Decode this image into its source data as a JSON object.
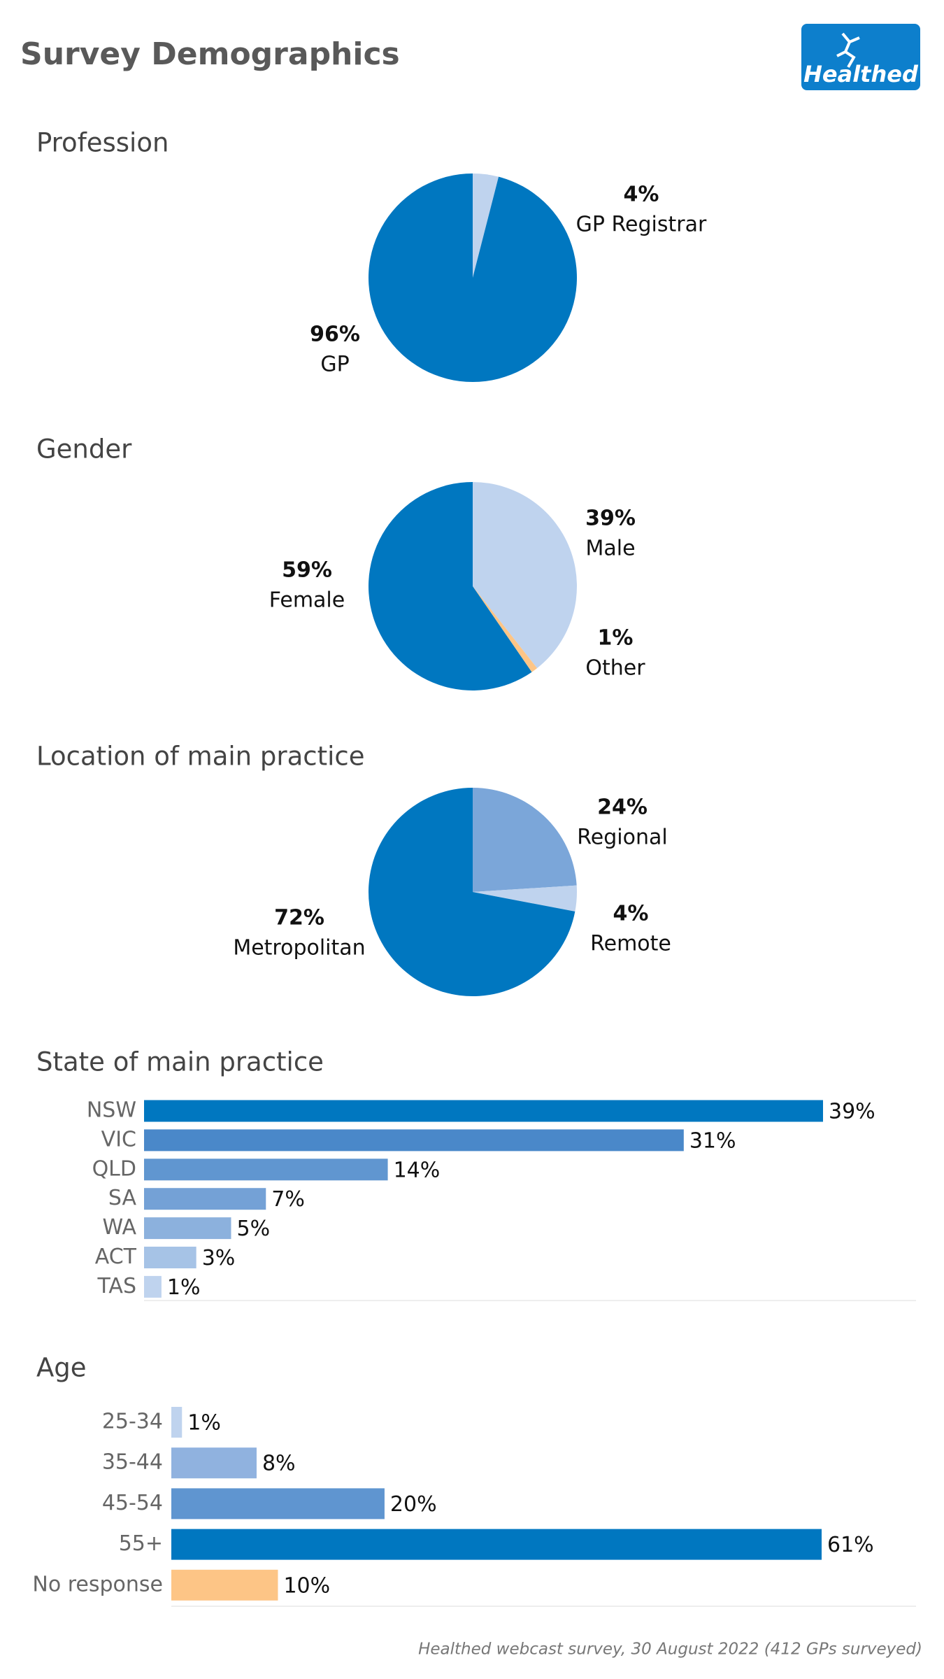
{
  "header": {
    "title": "Survey Demographics",
    "logo": "Healthed"
  },
  "chart_data": [
    {
      "type": "pie",
      "title": "Profession",
      "categories": [
        "GP Registrar",
        "GP"
      ],
      "values": [
        4,
        96
      ],
      "value_labels": [
        "4%",
        "96%"
      ],
      "colors": [
        "#bfd3ee",
        "#0077c0"
      ]
    },
    {
      "type": "pie",
      "title": "Gender",
      "categories": [
        "Male",
        "Other",
        "Female"
      ],
      "values": [
        39,
        1,
        59
      ],
      "value_labels": [
        "39%",
        "1%",
        "59%"
      ],
      "colors": [
        "#bfd3ee",
        "#fdc586",
        "#0077c0"
      ]
    },
    {
      "type": "pie",
      "title": "Location of main practice",
      "categories": [
        "Regional",
        "Remote",
        "Metropolitan"
      ],
      "values": [
        24,
        4,
        72
      ],
      "value_labels": [
        "24%",
        "4%",
        "72%"
      ],
      "colors": [
        "#7ba6d9",
        "#bfd3ee",
        "#0077c0"
      ]
    },
    {
      "type": "bar",
      "orientation": "horizontal",
      "title": "State of main practice",
      "categories": [
        "NSW",
        "VIC",
        "QLD",
        "SA",
        "WA",
        "ACT",
        "TAS"
      ],
      "values": [
        39,
        31,
        14,
        7,
        5,
        3,
        1
      ],
      "value_labels": [
        "39%",
        "31%",
        "14%",
        "7%",
        "5%",
        "3%",
        "1%"
      ],
      "colors": [
        "#0077c0",
        "#4a88c9",
        "#6096d0",
        "#74a1d6",
        "#8cb1dd",
        "#a6c3e6",
        "#bfd3ee"
      ]
    },
    {
      "type": "bar",
      "orientation": "horizontal",
      "title": "Age",
      "categories": [
        "25-34",
        "35-44",
        "45-54",
        "55+",
        "No response"
      ],
      "values": [
        1,
        8,
        20,
        61,
        10
      ],
      "value_labels": [
        "1%",
        "8%",
        "20%",
        "61%",
        "10%"
      ],
      "colors": [
        "#bfd3ee",
        "#90b2df",
        "#5f95d0",
        "#0077c0",
        "#fdc586"
      ]
    }
  ],
  "footnote": "Healthed webcast survey, 30 August 2022 (412 GPs surveyed)"
}
